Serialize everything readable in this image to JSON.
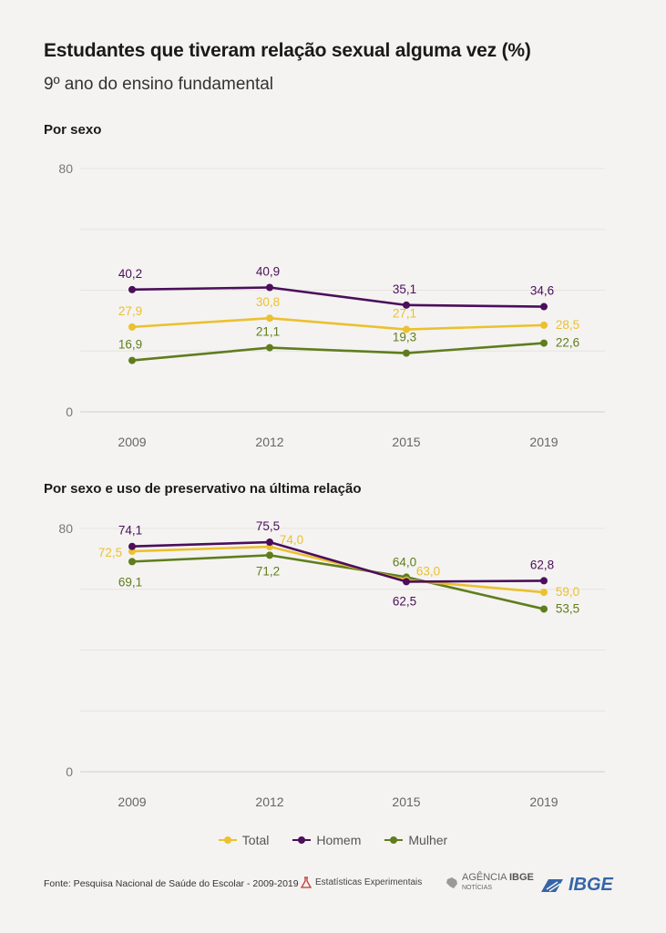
{
  "title": "Estudantes que tiveram relação sexual alguma vez (%)",
  "subtitle": "9º ano do ensino fundamental",
  "colors": {
    "Total": "#ecc02f",
    "Homem": "#4b0f5b",
    "Mulher": "#5f7d1e",
    "grid": "#e6e4e0",
    "axis": "#666666"
  },
  "chart_data": [
    {
      "type": "line",
      "title": "Por sexo",
      "categories": [
        "2009",
        "2012",
        "2015",
        "2019"
      ],
      "ylim": [
        0,
        80
      ],
      "yticks": [
        "0",
        "80"
      ],
      "series": [
        {
          "name": "Homem",
          "values": [
            40.2,
            40.9,
            35.1,
            34.6
          ],
          "labels": [
            "40,2",
            "40,9",
            "35,1",
            "34,6"
          ]
        },
        {
          "name": "Total",
          "values": [
            27.9,
            30.8,
            27.1,
            28.5
          ],
          "labels": [
            "27,9",
            "30,8",
            "27,1",
            "28,5"
          ]
        },
        {
          "name": "Mulher",
          "values": [
            16.9,
            21.1,
            19.3,
            22.6
          ],
          "labels": [
            "16,9",
            "21,1",
            "19,3",
            "22,6"
          ]
        }
      ]
    },
    {
      "type": "line",
      "title": "Por sexo e uso de preservativo na última relação",
      "categories": [
        "2009",
        "2012",
        "2015",
        "2019"
      ],
      "ylim": [
        0,
        80
      ],
      "yticks": [
        "0",
        "80"
      ],
      "series": [
        {
          "name": "Homem",
          "values": [
            74.1,
            75.5,
            62.5,
            62.8
          ],
          "labels": [
            "74,1",
            "75,5",
            "62,5",
            "62,8"
          ]
        },
        {
          "name": "Total",
          "values": [
            72.5,
            74.0,
            63.0,
            59.0
          ],
          "labels": [
            "72,5",
            "74,0",
            "63,0",
            "59,0"
          ]
        },
        {
          "name": "Mulher",
          "values": [
            69.1,
            71.2,
            64.0,
            53.5
          ],
          "labels": [
            "69,1",
            "71,2",
            "64,0",
            "53,5"
          ]
        }
      ]
    }
  ],
  "legend": [
    "Total",
    "Homem",
    "Mulher"
  ],
  "footer": {
    "source": "Fonte: Pesquisa Nacional de Saúde do Escolar - 2009-2019",
    "badge": "Estatísticas Experimentais",
    "agencia": "AGÊNCIA",
    "agencia_bold": "IBGE",
    "noticias": "NOTÍCIAS",
    "ibge": "IBGE"
  }
}
